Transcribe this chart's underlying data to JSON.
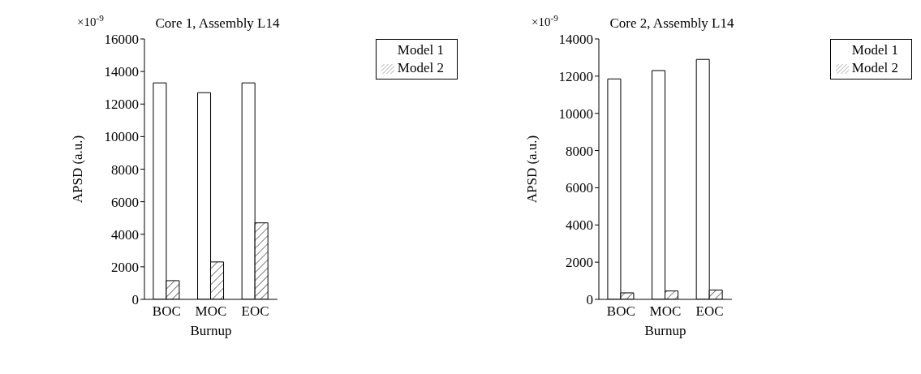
{
  "chart_data": [
    {
      "type": "bar",
      "title": "Core 1, Assembly L14",
      "xlabel": "Burnup",
      "ylabel": "APSD (a.u.)",
      "annotations": [
        "×10$^{-9}$"
      ],
      "categories": [
        "BOC",
        "MOC",
        "EOC"
      ],
      "series": [
        {
          "name": "Model 1",
          "color": "#ffffff",
          "values": [
            13300,
            12700,
            13300
          ]
        },
        {
          "name": "Model 2",
          "color": "#000000",
          "values": [
            1150,
            2300,
            4700
          ]
        }
      ],
      "ylim": [
        0,
        16000
      ],
      "yticks": [
        0,
        2000,
        4000,
        6000,
        8000,
        10000,
        12000,
        14000,
        16000
      ],
      "grid": false,
      "legend": "top right"
    },
    {
      "type": "bar",
      "title": "Core 2, Assembly L14",
      "xlabel": "Burnup",
      "ylabel": "APSD (a.u.)",
      "annotations": [
        "×10$^{-9}$"
      ],
      "categories": [
        "BOC",
        "MOC",
        "EOC"
      ],
      "series": [
        {
          "name": "Model 1",
          "color": "#ffffff",
          "values": [
            11850,
            12300,
            12900
          ]
        },
        {
          "name": "Model 2",
          "color": "#000000",
          "values": [
            350,
            450,
            500
          ]
        }
      ],
      "ylim": [
        0,
        14000
      ],
      "yticks": [
        0,
        2000,
        4000,
        6000,
        8000,
        10000,
        12000,
        14000
      ],
      "grid": false,
      "legend": "top right"
    }
  ]
}
